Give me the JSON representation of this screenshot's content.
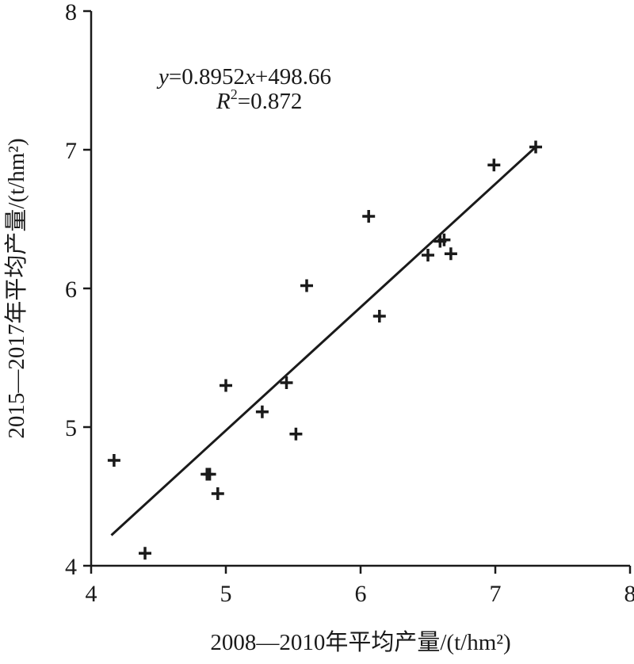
{
  "chart_data": {
    "type": "scatter",
    "xlabel": "2008—2010年平均产量/(t/hm²)",
    "ylabel": "2015—2017年平均产量/(t/hm²)",
    "xlim": [
      4,
      8
    ],
    "ylim": [
      4,
      8
    ],
    "xticks": [
      "4",
      "5",
      "6",
      "7",
      "8"
    ],
    "yticks": [
      "4",
      "5",
      "6",
      "7",
      "8"
    ],
    "grid": false,
    "marker": "plus",
    "points": [
      {
        "x": 4.17,
        "y": 4.76
      },
      {
        "x": 4.4,
        "y": 4.09
      },
      {
        "x": 4.86,
        "y": 4.66
      },
      {
        "x": 4.88,
        "y": 4.66
      },
      {
        "x": 4.94,
        "y": 4.52
      },
      {
        "x": 5.0,
        "y": 5.3
      },
      {
        "x": 5.27,
        "y": 5.11
      },
      {
        "x": 5.45,
        "y": 5.32
      },
      {
        "x": 5.52,
        "y": 4.95
      },
      {
        "x": 5.6,
        "y": 6.02
      },
      {
        "x": 6.06,
        "y": 6.52
      },
      {
        "x": 6.14,
        "y": 5.8
      },
      {
        "x": 6.5,
        "y": 6.24
      },
      {
        "x": 6.59,
        "y": 6.34
      },
      {
        "x": 6.62,
        "y": 6.35
      },
      {
        "x": 6.67,
        "y": 6.25
      },
      {
        "x": 6.99,
        "y": 6.89
      },
      {
        "x": 7.3,
        "y": 7.02
      }
    ],
    "trendline": {
      "x": [
        4.15,
        7.3
      ],
      "y": [
        4.22,
        7.02
      ]
    },
    "annotations": {
      "eq_y": "y",
      "eq_rest": "=0.8952",
      "eq_x": "x",
      "eq_tail": "+498.66",
      "r2_R": "R",
      "r2_sup": "2",
      "r2_value": "=0.872"
    }
  }
}
